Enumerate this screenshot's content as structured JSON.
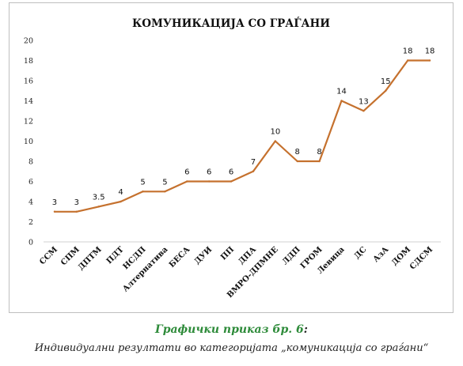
{
  "chart_data": {
    "type": "line",
    "title": "КОМУНИКАЦИЈА СО ГРАЃАНИ",
    "categories": [
      "ССМ",
      "СПМ",
      "ДПТМ",
      "ПДТ",
      "НСДП",
      "Алтернатива",
      "БЕСА",
      "ДУИ",
      "ПП",
      "ДПА",
      "ВМРО-ДПМНЕ",
      "ЛДП",
      "ГРОМ",
      "Левица",
      "ДС",
      "АзА",
      "ДОМ",
      "СДСМ"
    ],
    "values": [
      3,
      3,
      3.5,
      4,
      5,
      5,
      6,
      6,
      6,
      7,
      10,
      8,
      8,
      14,
      13,
      15,
      18,
      18
    ],
    "data_labels": [
      "3",
      "3",
      "3.5",
      "4",
      "5",
      "5",
      "6",
      "6",
      "6",
      "7",
      "10",
      "8",
      "8",
      "14",
      "13",
      "15",
      "18",
      "18"
    ],
    "yticks": [
      "0",
      "2",
      "4",
      "6",
      "8",
      "10",
      "12",
      "14",
      "16",
      "18",
      "20"
    ],
    "ylim": [
      0,
      20
    ],
    "grid": false,
    "line_color": "#c5712e"
  },
  "caption": {
    "title": "Графички приказ бр. 6",
    "title_suffix": ":",
    "subtitle": "Индивидуални  резултати во категоријата „комуникација со граѓани“"
  },
  "colors": {
    "caption_green": "#2e8b3a"
  }
}
